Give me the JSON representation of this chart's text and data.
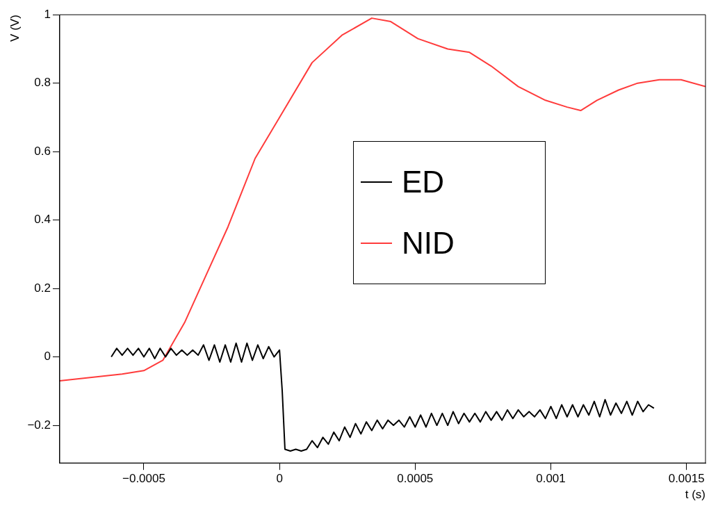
{
  "chart_data": {
    "type": "line",
    "xlabel": "t (s)",
    "ylabel": "V (V)",
    "xlim": [
      -0.00081,
      0.00157
    ],
    "ylim": [
      -0.31,
      1
    ],
    "xticks": [
      {
        "value": -0.0005,
        "label": "−0.0005"
      },
      0,
      0.0005,
      0.001,
      0.0015
    ],
    "yticks": [
      {
        "value": -0.2,
        "label": "−0.2"
      },
      0,
      0.2,
      0.4,
      0.6,
      0.8,
      1
    ],
    "grid": false,
    "legend": "right",
    "marker": "none",
    "line_style": "solid",
    "series": [
      {
        "name": "ED",
        "color": "#000000",
        "x": [
          -0.00062,
          -0.0006,
          -0.00058,
          -0.00056,
          -0.00054,
          -0.00052,
          -0.0005,
          -0.00048,
          -0.00046,
          -0.00044,
          -0.00042,
          -0.0004,
          -0.00038,
          -0.00036,
          -0.00034,
          -0.00032,
          -0.0003,
          -0.00028,
          -0.00026,
          -0.00024,
          -0.00022,
          -0.0002,
          -0.00018,
          -0.00016,
          -0.00014,
          -0.00012,
          -0.0001,
          -8e-05,
          -6e-05,
          -4e-05,
          -2e-05,
          0,
          1e-05,
          2e-05,
          4e-05,
          6e-05,
          8e-05,
          0.0001,
          0.00012,
          0.00014,
          0.00016,
          0.00018,
          0.0002,
          0.00022,
          0.00024,
          0.00026,
          0.00028,
          0.0003,
          0.00032,
          0.00034,
          0.00036,
          0.00038,
          0.0004,
          0.00042,
          0.00044,
          0.00046,
          0.00048,
          0.0005,
          0.00052,
          0.00054,
          0.00056,
          0.00058,
          0.0006,
          0.00062,
          0.00064,
          0.00066,
          0.00068,
          0.0007,
          0.00072,
          0.00074,
          0.00076,
          0.00078,
          0.0008,
          0.00082,
          0.00084,
          0.00086,
          0.00088,
          0.0009,
          0.00092,
          0.00094,
          0.00096,
          0.00098,
          0.001,
          0.00102,
          0.00104,
          0.00106,
          0.00108,
          0.0011,
          0.00112,
          0.00114,
          0.00116,
          0.00118,
          0.0012,
          0.00122,
          0.00124,
          0.00126,
          0.00128,
          0.0013,
          0.00132,
          0.00134,
          0.00136,
          0.00138
        ],
        "values": [
          0.0,
          0.025,
          0.005,
          0.025,
          0.005,
          0.025,
          0.0,
          0.025,
          -0.005,
          0.025,
          0.0,
          0.025,
          0.005,
          0.02,
          0.005,
          0.02,
          0.005,
          0.035,
          -0.01,
          0.035,
          -0.015,
          0.035,
          -0.015,
          0.04,
          -0.015,
          0.04,
          -0.01,
          0.035,
          -0.005,
          0.03,
          0.0,
          0.02,
          -0.1,
          -0.27,
          -0.275,
          -0.27,
          -0.275,
          -0.27,
          -0.245,
          -0.265,
          -0.235,
          -0.255,
          -0.22,
          -0.245,
          -0.205,
          -0.235,
          -0.195,
          -0.225,
          -0.19,
          -0.215,
          -0.185,
          -0.21,
          -0.185,
          -0.2,
          -0.185,
          -0.205,
          -0.175,
          -0.205,
          -0.17,
          -0.205,
          -0.165,
          -0.2,
          -0.165,
          -0.2,
          -0.16,
          -0.195,
          -0.165,
          -0.19,
          -0.165,
          -0.19,
          -0.16,
          -0.185,
          -0.16,
          -0.185,
          -0.155,
          -0.18,
          -0.155,
          -0.175,
          -0.16,
          -0.175,
          -0.155,
          -0.18,
          -0.145,
          -0.18,
          -0.14,
          -0.175,
          -0.14,
          -0.175,
          -0.14,
          -0.17,
          -0.13,
          -0.175,
          -0.125,
          -0.17,
          -0.135,
          -0.165,
          -0.13,
          -0.17,
          -0.13,
          -0.16,
          -0.14,
          -0.15
        ]
      },
      {
        "name": "NID",
        "color": "#ff3b3b",
        "x": [
          -0.00081,
          -0.00058,
          -0.0005,
          -0.00043,
          -0.00035,
          -0.00027,
          -0.00019,
          -9e-05,
          0,
          0.00012,
          0.00023,
          0.00034,
          0.00041,
          0.00051,
          0.00062,
          0.0007,
          0.00078,
          0.00088,
          0.00098,
          0.00106,
          0.00111,
          0.00117,
          0.00125,
          0.00132,
          0.0014,
          0.00148,
          0.00157
        ],
        "values": [
          -0.07,
          -0.05,
          -0.04,
          -0.01,
          0.1,
          0.24,
          0.38,
          0.58,
          0.7,
          0.86,
          0.94,
          0.99,
          0.98,
          0.93,
          0.9,
          0.89,
          0.85,
          0.79,
          0.75,
          0.73,
          0.72,
          0.75,
          0.78,
          0.8,
          0.81,
          0.81,
          0.79
        ]
      }
    ]
  }
}
